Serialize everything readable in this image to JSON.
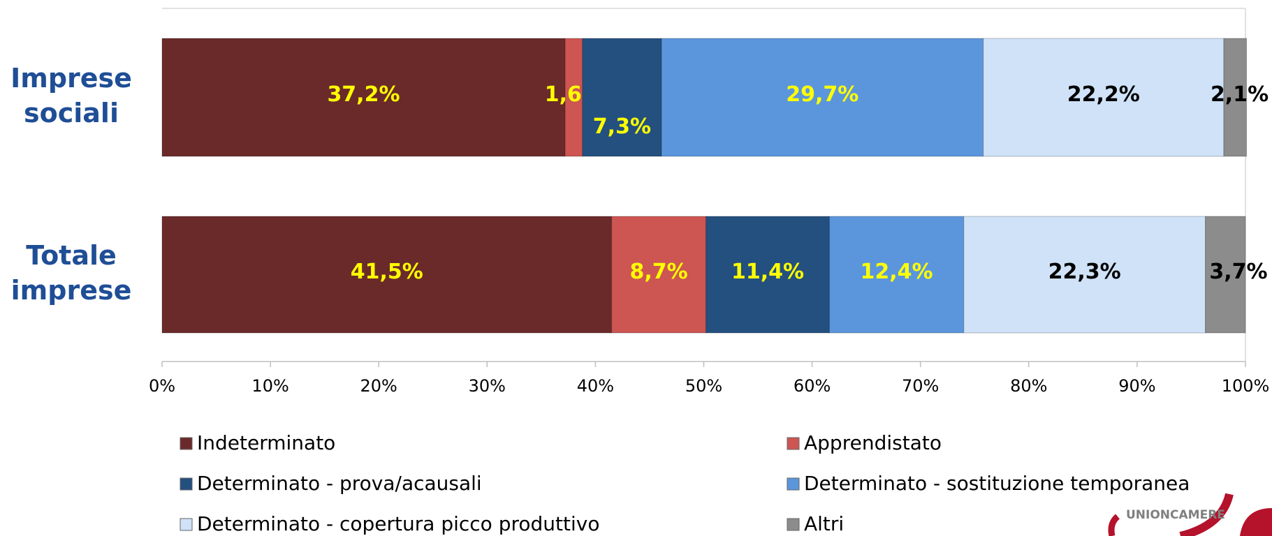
{
  "chart_data": {
    "type": "stacked_barh",
    "categories": [
      [
        "Imprese",
        "sociali"
      ],
      [
        "Totale",
        "imprese"
      ]
    ],
    "series": [
      {
        "name": "Indeterminato",
        "color": "#6b2a2a",
        "label_color": "#ffff00",
        "values": [
          37.2,
          41.5
        ],
        "value_labels": [
          "37,2%",
          "41,5%"
        ]
      },
      {
        "name": "Apprendistato",
        "color": "#cd5552",
        "label_color": "#ffff00",
        "values": [
          1.6,
          8.7
        ],
        "value_labels": [
          "1,6%",
          "8,7%"
        ]
      },
      {
        "name": "Determinato - prova/acausali",
        "color": "#24507f",
        "label_color": "#ffff00",
        "values": [
          7.3,
          11.4
        ],
        "value_labels": [
          "7,3%",
          "11,4%"
        ]
      },
      {
        "name": "Determinato - sostituzione temporanea",
        "color": "#5b96dd",
        "label_color": "#ffff00",
        "values": [
          29.7,
          12.4
        ],
        "value_labels": [
          "29,7%",
          "12,4%"
        ]
      },
      {
        "name": "Determinato - copertura picco produttivo",
        "color": "#cfe2f8",
        "label_color": "#000000",
        "values": [
          22.2,
          22.3
        ],
        "value_labels": [
          "22,2%",
          "22,3%"
        ]
      },
      {
        "name": "Altri",
        "color": "#8c8c8c",
        "label_color": "#000000",
        "values": [
          2.1,
          3.7
        ],
        "value_labels": [
          "2,1%",
          "3,7%"
        ]
      }
    ],
    "xlim": [
      0,
      100
    ],
    "xticks": [
      {
        "value": 0,
        "label": "0%"
      },
      {
        "value": 10,
        "label": "10%"
      },
      {
        "value": 20,
        "label": "20%"
      },
      {
        "value": 30,
        "label": "30%"
      },
      {
        "value": 40,
        "label": "40%"
      },
      {
        "value": 50,
        "label": "50%"
      },
      {
        "value": 60,
        "label": "60%"
      },
      {
        "value": 70,
        "label": "70%"
      },
      {
        "value": 80,
        "label": "80%"
      },
      {
        "value": 90,
        "label": "90%"
      },
      {
        "value": 100,
        "label": "100%"
      }
    ],
    "legend": "bottom"
  },
  "logo_text": "UNIONCAMERE"
}
